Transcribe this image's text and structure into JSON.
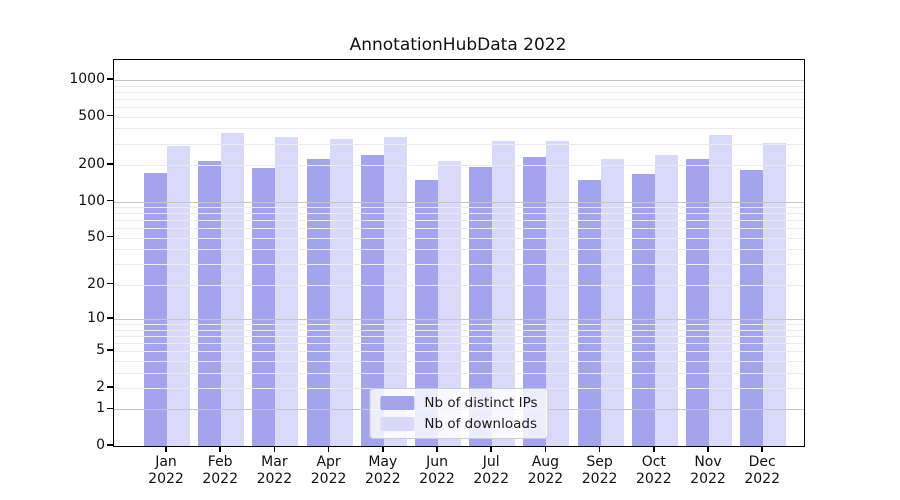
{
  "title": "AnnotationHubData 2022",
  "chart_data": {
    "type": "bar",
    "title": "AnnotationHubData 2022",
    "categories": [
      "Jan 2022",
      "Feb 2022",
      "Mar 2022",
      "Apr 2022",
      "May 2022",
      "Jun 2022",
      "Jul 2022",
      "Aug 2022",
      "Sep 2022",
      "Oct 2022",
      "Nov 2022",
      "Dec 2022"
    ],
    "series": [
      {
        "name": "Nb of distinct IPs",
        "color": "#a3a3ee",
        "values": [
          173,
          218,
          190,
          225,
          240,
          152,
          191,
          233,
          150,
          170,
          223,
          181
        ]
      },
      {
        "name": "Nb of downloads",
        "color": "#d9d9fa",
        "values": [
          288,
          365,
          338,
          326,
          340,
          216,
          313,
          315,
          225,
          240,
          351,
          305
        ]
      }
    ],
    "xlabel": "",
    "ylabel": "",
    "y_scale": "log10(value+1)",
    "y_ticks": [
      0,
      1,
      2,
      5,
      10,
      20,
      50,
      100,
      200,
      500,
      1000
    ],
    "y_minor_gridlines": [
      2,
      3,
      4,
      5,
      6,
      7,
      8,
      9,
      20,
      30,
      40,
      50,
      60,
      70,
      80,
      90,
      200,
      300,
      400,
      500,
      600,
      700,
      800,
      900
    ],
    "y_major_gridlines": [
      1,
      10,
      100,
      1000
    ],
    "ylim": [
      0,
      1458
    ],
    "grid": true,
    "legend_position": "lower center inside"
  },
  "colors": {
    "bar_distinct_ips": "#a3a3ee",
    "bar_downloads": "#d9d9fa",
    "grid_minor": "#ebebeb",
    "grid_major": "#c6c6c6",
    "axis": "#000000",
    "text": "#111111",
    "legend_border": "#cccccc"
  }
}
